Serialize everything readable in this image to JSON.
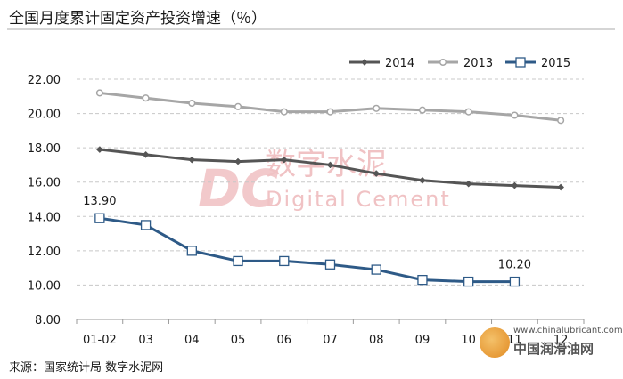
{
  "header": {
    "title": "全国月度累计固定资产投资增速（％）"
  },
  "footer": {
    "source": "来源：国家统计局  数字水泥网"
  },
  "watermarks": {
    "center_cn": "数字水泥",
    "center_en": "Digital Cement",
    "logo_letters": "DC",
    "site_url": "www.chinalubricant.com",
    "site_name": "中国润滑油网"
  },
  "colors": {
    "s2014": "#555555",
    "s2013": "#a6a6a6",
    "s2015": "#2e5a87",
    "grid": "#c8c8c8"
  },
  "chart_data": {
    "type": "line",
    "categories": [
      "01-02",
      "03",
      "04",
      "05",
      "06",
      "07",
      "08",
      "09",
      "10",
      "11",
      "12"
    ],
    "ylim": [
      8.0,
      22.0
    ],
    "yticks": [
      "8.00",
      "10.00",
      "12.00",
      "14.00",
      "16.00",
      "18.00",
      "20.00",
      "22.00"
    ],
    "grid": "horizontal dashed",
    "legend_position": "top-right",
    "series": [
      {
        "name": "2014",
        "marker": "diamond",
        "values": [
          17.9,
          17.6,
          17.3,
          17.2,
          17.3,
          17.0,
          16.5,
          16.1,
          15.9,
          15.8,
          15.7
        ]
      },
      {
        "name": "2013",
        "marker": "circle",
        "values": [
          21.2,
          20.9,
          20.6,
          20.4,
          20.1,
          20.1,
          20.3,
          20.2,
          20.1,
          19.9,
          19.6
        ]
      },
      {
        "name": "2015",
        "marker": "square",
        "values": [
          13.9,
          13.5,
          12.0,
          11.4,
          11.4,
          11.2,
          10.9,
          10.3,
          10.2,
          10.2,
          null
        ]
      }
    ],
    "data_labels": [
      {
        "series": "2015",
        "index": 0,
        "text": "13.90"
      },
      {
        "series": "2015",
        "index": 9,
        "text": "10.20"
      }
    ]
  }
}
